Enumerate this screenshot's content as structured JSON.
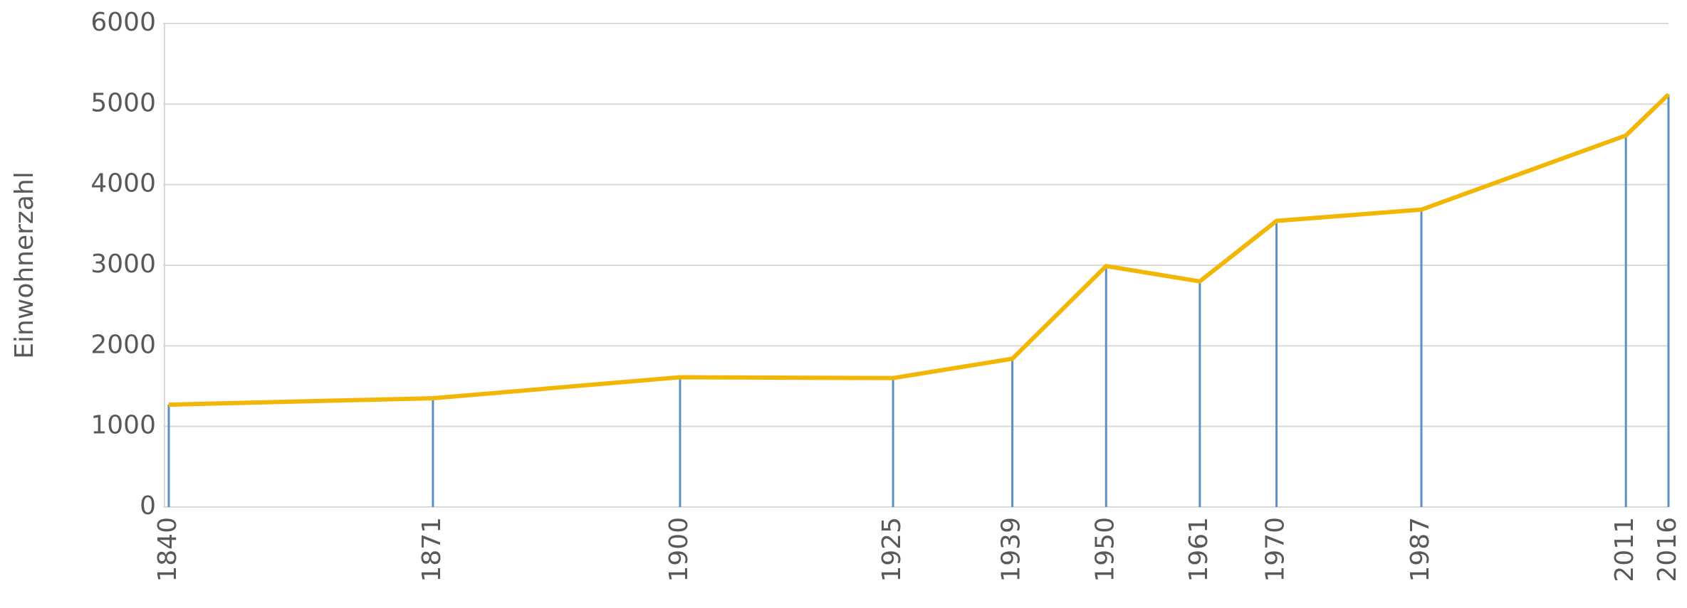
{
  "chart_data": {
    "type": "line",
    "ylabel": "Einwohnerzahl",
    "x": [
      1840,
      1871,
      1900,
      1925,
      1939,
      1950,
      1961,
      1970,
      1987,
      2011,
      2016
    ],
    "series": [
      {
        "name": "Einwohnerzahl",
        "color": "#f2b705",
        "drop_color": "#5b8fc7",
        "values": [
          1270,
          1350,
          1610,
          1600,
          1840,
          2990,
          2800,
          3550,
          3690,
          4610,
          5120
        ]
      }
    ],
    "xlim": [
      1840,
      2016
    ],
    "xticks": [
      1840,
      1871,
      1900,
      1925,
      1939,
      1950,
      1961,
      1970,
      1987,
      2011,
      2016
    ],
    "ylim": [
      0,
      6000
    ],
    "yticks": [
      0,
      1000,
      2000,
      3000,
      4000,
      5000,
      6000
    ],
    "grid": true
  }
}
